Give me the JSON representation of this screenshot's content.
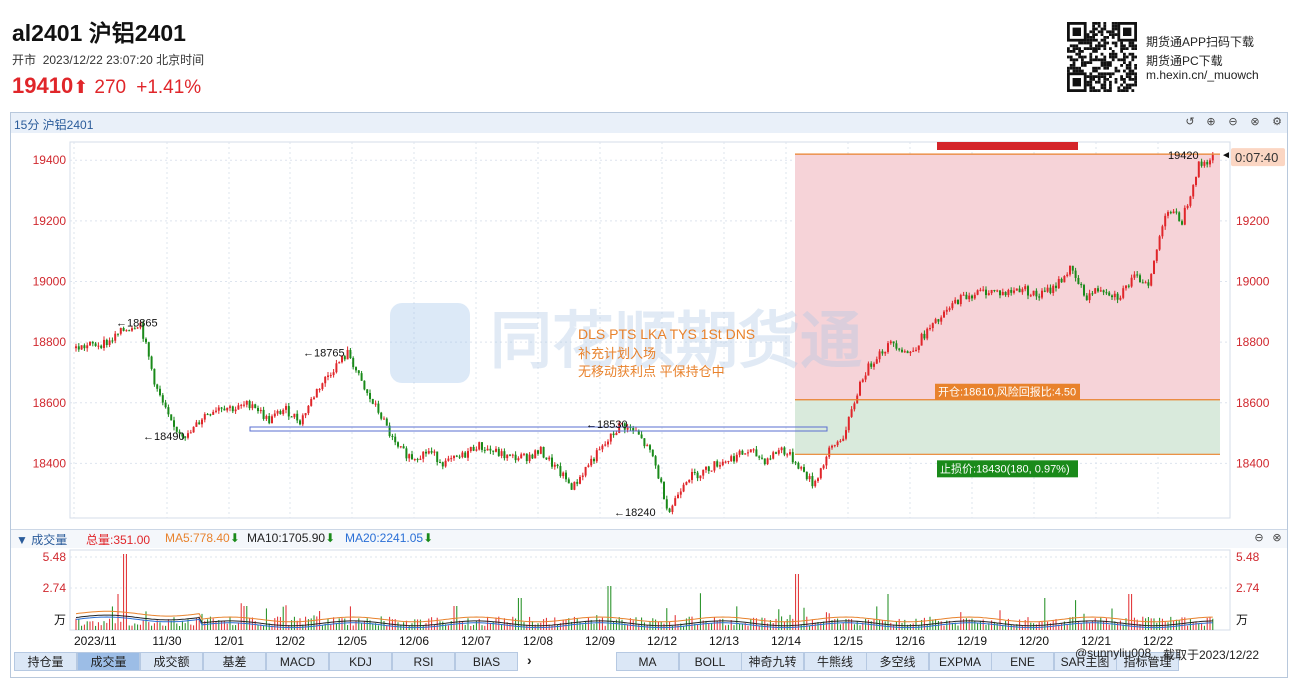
{
  "header": {
    "title": "al2401 沪铝2401",
    "market_status": "开市",
    "datetime": "2023/12/22 23:07:20 北京时间",
    "price": "19410",
    "change": "270",
    "change_pct": "+1.41%",
    "promo": [
      "期货通APP扫码下载",
      "期货通PC下载",
      "m.hexin.cn/_muowch"
    ]
  },
  "panel": {
    "label": "15分 沪铝2401",
    "countdown": "0:07:40",
    "last_label": "19420"
  },
  "colors": {
    "up": "#e0262a",
    "down": "#1a8a1a",
    "accent": "#e8822c",
    "profit_zone": "#f6d3d8",
    "loss_zone": "#d9eadc"
  },
  "chart_data": {
    "type": "candlestick",
    "xlabels": [
      "2023/11",
      "11/30",
      "12/01",
      "12/02",
      "12/05",
      "12/06",
      "12/07",
      "12/08",
      "12/09",
      "12/12",
      "12/13",
      "12/14",
      "12/15",
      "12/16",
      "12/19",
      "12/20",
      "12/21",
      "12/22"
    ],
    "yticks": [
      18400,
      18600,
      18800,
      19000,
      19200,
      19400
    ],
    "ylim": [
      18220,
      19460
    ],
    "price_path": [
      [
        0,
        18780
      ],
      [
        2,
        18800
      ],
      [
        3,
        18840
      ],
      [
        4,
        18865
      ],
      [
        5,
        18650
      ],
      [
        6,
        18520
      ],
      [
        7,
        18490
      ],
      [
        8,
        18560
      ],
      [
        9,
        18590
      ],
      [
        10,
        18580
      ],
      [
        11,
        18600
      ],
      [
        12,
        18540
      ],
      [
        13,
        18580
      ],
      [
        14,
        18540
      ],
      [
        15,
        18640
      ],
      [
        16,
        18710
      ],
      [
        17,
        18765
      ],
      [
        18,
        18640
      ],
      [
        19,
        18560
      ],
      [
        20,
        18450
      ],
      [
        21,
        18420
      ],
      [
        22,
        18440
      ],
      [
        23,
        18400
      ],
      [
        24,
        18420
      ],
      [
        25,
        18460
      ],
      [
        26,
        18440
      ],
      [
        27,
        18420
      ],
      [
        28,
        18420
      ],
      [
        29,
        18440
      ],
      [
        30,
        18380
      ],
      [
        31,
        18320
      ],
      [
        32,
        18400
      ],
      [
        33,
        18460
      ],
      [
        34,
        18530
      ],
      [
        35,
        18500
      ],
      [
        36,
        18420
      ],
      [
        37,
        18240
      ],
      [
        38,
        18350
      ],
      [
        39,
        18370
      ],
      [
        40,
        18400
      ],
      [
        41,
        18420
      ],
      [
        42,
        18440
      ],
      [
        43,
        18410
      ],
      [
        44,
        18450
      ],
      [
        45,
        18400
      ],
      [
        46,
        18330
      ],
      [
        47,
        18440
      ],
      [
        48,
        18500
      ],
      [
        49,
        18680
      ],
      [
        50,
        18760
      ],
      [
        51,
        18800
      ],
      [
        52,
        18760
      ],
      [
        53,
        18830
      ],
      [
        54,
        18880
      ],
      [
        55,
        18940
      ],
      [
        56,
        18960
      ],
      [
        57,
        18970
      ],
      [
        58,
        18960
      ],
      [
        59,
        18980
      ],
      [
        60,
        18950
      ],
      [
        61,
        18980
      ],
      [
        62,
        19040
      ],
      [
        63,
        18950
      ],
      [
        64,
        18980
      ],
      [
        65,
        18950
      ],
      [
        66,
        19010
      ],
      [
        67,
        19000
      ],
      [
        68,
        19240
      ],
      [
        69,
        19200
      ],
      [
        70,
        19380
      ],
      [
        71,
        19410
      ]
    ],
    "annotations": [
      {
        "label": "←18865",
        "price": 18865
      },
      {
        "label": "←18490",
        "price": 18490
      },
      {
        "label": "←18765",
        "price": 18765
      },
      {
        "label": "←18530",
        "price": 18530
      },
      {
        "label": "←18240",
        "price": 18240
      }
    ],
    "trade": {
      "title": "DLS PTS LKA TYS 1St DNS",
      "lines": [
        "补充计划入场",
        "无移动获利点 平保持仓中"
      ],
      "entry": 18610,
      "entry_label": "开仓:18610,风险回报比:4.50",
      "stop": 18430,
      "stop_label": "止损价:18430(180, 0.97%)",
      "target": 19420
    },
    "watermark": "同花顺期货通",
    "volume": {
      "title": "成交量",
      "total": "总量:351.00",
      "ma5": "MA5:778.40",
      "ma10": "MA10:1705.90",
      "ma20": "MA20:2241.05",
      "yticks": [
        "5.48",
        "2.74",
        "万"
      ]
    }
  },
  "tabs_left": [
    "持仓量",
    "成交量",
    "成交额",
    "基差",
    "MACD",
    "KDJ",
    "RSI",
    "BIAS"
  ],
  "tabs_right": [
    "MA",
    "BOLL",
    "神奇九转",
    "牛熊线",
    "多空线",
    "EXPMA",
    "ENE",
    "SAR主图",
    "指标管理"
  ],
  "footer": {
    "user": "@sunnyliu008",
    "capture": "截取于2023/12/22"
  }
}
